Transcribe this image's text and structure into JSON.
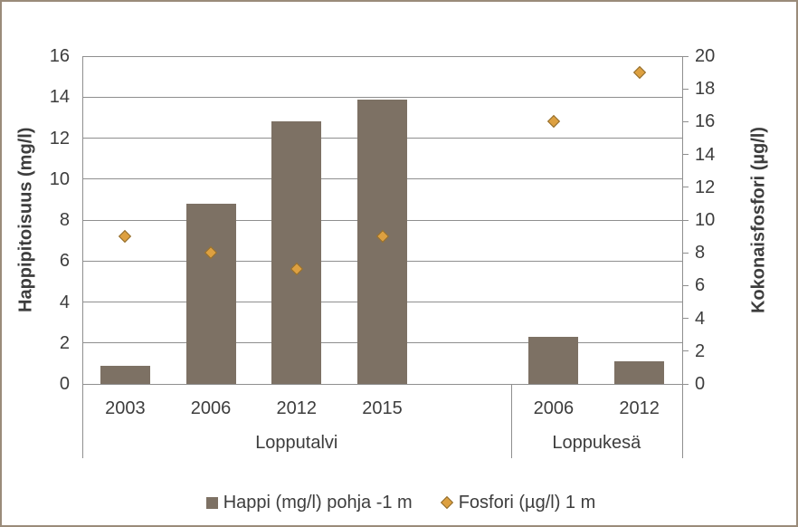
{
  "colors": {
    "bar": "#7d7164",
    "diamond_fill": "#dda040",
    "diamond_stroke": "#8f6b2d",
    "grid": "#8f8f8f",
    "text": "#3d3d3d",
    "frame_border": "#9a8b7a",
    "background": "#ffffff"
  },
  "chart_data": {
    "type": "bar",
    "subtype": "combo bar + scatter, dual y-axes",
    "groups": [
      {
        "label": "Lopputalvi",
        "categories": [
          "2003",
          "2006",
          "2012",
          "2015"
        ]
      },
      {
        "label": "Loppukesä",
        "categories": [
          "2006",
          "2012"
        ]
      }
    ],
    "series": [
      {
        "name": "Happi (mg/l) pohja -1 m",
        "type": "bar",
        "axis": "left",
        "values": [
          0.9,
          8.8,
          12.8,
          13.9,
          2.3,
          1.1
        ],
        "color": "#7d7164"
      },
      {
        "name": "Fosfori (µg/l) 1 m",
        "type": "scatter",
        "marker": "diamond",
        "axis": "right",
        "values": [
          9,
          8,
          7,
          9,
          16,
          19
        ],
        "fill": "#dda040",
        "stroke": "#8f6b2d"
      }
    ],
    "left_axis": {
      "label": "Happipitoisuus (mg/l)",
      "min": 0,
      "max": 16,
      "step": 2,
      "tick_labels": [
        "0",
        "2",
        "4",
        "6",
        "8",
        "10",
        "12",
        "14",
        "16"
      ]
    },
    "right_axis": {
      "label": "Kokonaisfosfori (µg/l)",
      "min": 0,
      "max": 20,
      "step": 2,
      "tick_labels": [
        "0",
        "2",
        "4",
        "6",
        "8",
        "10",
        "12",
        "14",
        "16",
        "18",
        "20"
      ]
    },
    "grid": true,
    "legend_position": "bottom"
  }
}
